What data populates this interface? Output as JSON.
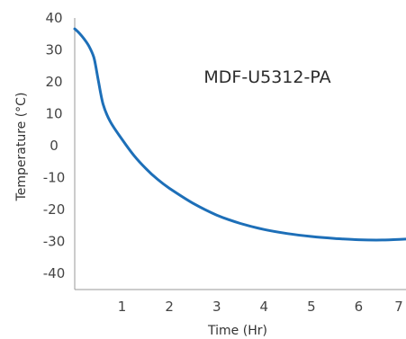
{
  "chart_data": {
    "type": "line",
    "annotation": "MDF-U5312-PA",
    "xlabel": "Time (Hr)",
    "ylabel": "Temperature (°C)",
    "xlim": [
      0,
      7
    ],
    "ylim": [
      -45,
      40
    ],
    "x_ticks": [
      1,
      2,
      3,
      4,
      5,
      6,
      7
    ],
    "y_ticks": [
      40,
      30,
      20,
      10,
      0,
      -10,
      -20,
      -30,
      -40
    ],
    "tick_labels_x": [
      "1",
      "2",
      "3",
      "4",
      "5",
      "6",
      "7"
    ],
    "tick_labels_y": [
      "40",
      "30",
      "20",
      "10",
      "0",
      "-10",
      "-20",
      "-30",
      "-40"
    ],
    "grid": false,
    "line_color": "#1d6fb8",
    "series": [
      {
        "x": [
          0,
          0.1,
          0.2,
          0.3,
          0.4,
          0.45,
          0.5,
          0.6,
          0.75,
          1.0,
          1.25,
          1.5,
          1.75,
          2.0,
          2.5,
          3.0,
          3.5,
          4.0,
          4.5,
          5.0,
          5.5,
          6.0,
          6.5,
          7.0
        ],
        "y": [
          36.6,
          35.2,
          33.4,
          31.2,
          27.9,
          24.4,
          20.3,
          13.0,
          7.6,
          2.0,
          -3.0,
          -7.1,
          -10.5,
          -13.3,
          -18.0,
          -21.7,
          -24.3,
          -26.2,
          -27.5,
          -28.4,
          -29.0,
          -29.4,
          -29.5,
          -29.2
        ]
      }
    ]
  }
}
